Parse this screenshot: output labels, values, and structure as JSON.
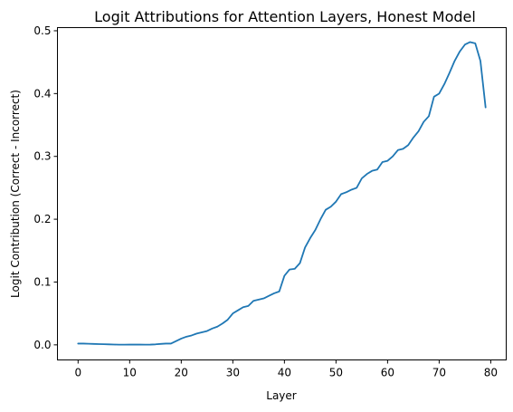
{
  "chart_data": {
    "type": "line",
    "title": "Logit Attributions for Attention Layers, Honest Model",
    "xlabel": "Layer",
    "ylabel": "Logit Contribution (Correct - Incorrect)",
    "xlim": [
      -4,
      83
    ],
    "ylim": [
      -0.024,
      0.505
    ],
    "x_ticks": [
      0,
      10,
      20,
      30,
      40,
      50,
      60,
      70,
      80
    ],
    "y_ticks": [
      0.0,
      0.1,
      0.2,
      0.3,
      0.4,
      0.5
    ],
    "y_tick_labels": [
      "0.0",
      "0.1",
      "0.2",
      "0.3",
      "0.4",
      "0.5"
    ],
    "grid": false,
    "series": [
      {
        "color": "#1f77b4",
        "x": [
          0,
          1,
          2,
          3,
          4,
          5,
          6,
          7,
          8,
          9,
          10,
          11,
          12,
          13,
          14,
          15,
          16,
          17,
          18,
          19,
          20,
          21,
          22,
          23,
          24,
          25,
          26,
          27,
          28,
          29,
          30,
          31,
          32,
          33,
          34,
          35,
          36,
          37,
          38,
          39,
          40,
          41,
          42,
          43,
          44,
          45,
          46,
          47,
          48,
          49,
          50,
          51,
          52,
          53,
          54,
          55,
          56,
          57,
          58,
          59,
          60,
          61,
          62,
          63,
          64,
          65,
          66,
          67,
          68,
          69,
          70,
          71,
          72,
          73,
          74,
          75,
          76,
          77,
          78,
          79
        ],
        "values": [
          0.002,
          0.002,
          0.0018,
          0.0015,
          0.0012,
          0.001,
          0.0008,
          0.0005,
          0.0003,
          0.0003,
          0.0004,
          0.0005,
          0.0004,
          0.0003,
          0.0004,
          0.0008,
          0.0015,
          0.002,
          0.002,
          0.006,
          0.01,
          0.013,
          0.015,
          0.018,
          0.02,
          0.022,
          0.026,
          0.029,
          0.034,
          0.04,
          0.05,
          0.055,
          0.06,
          0.062,
          0.07,
          0.072,
          0.074,
          0.078,
          0.082,
          0.085,
          0.11,
          0.12,
          0.121,
          0.13,
          0.155,
          0.17,
          0.183,
          0.2,
          0.215,
          0.22,
          0.228,
          0.24,
          0.243,
          0.247,
          0.25,
          0.265,
          0.272,
          0.277,
          0.279,
          0.291,
          0.293,
          0.3,
          0.31,
          0.312,
          0.318,
          0.33,
          0.34,
          0.355,
          0.364,
          0.395,
          0.4,
          0.415,
          0.433,
          0.452,
          0.467,
          0.478,
          0.482,
          0.48,
          0.452,
          0.378
        ]
      }
    ]
  }
}
